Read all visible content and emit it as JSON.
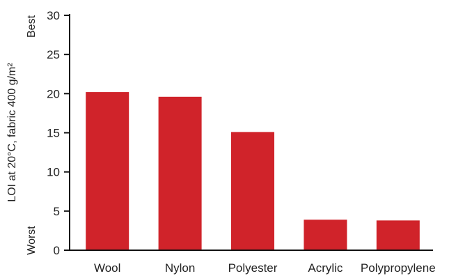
{
  "chart_data": {
    "type": "bar",
    "title": "",
    "categories": [
      "Wool",
      "Nylon",
      "Polyester",
      "Acrylic",
      "Polypropylene"
    ],
    "values": [
      20.2,
      19.6,
      15.1,
      3.9,
      3.8
    ],
    "ylabel": "LOI at 20°C, fabric 400 g/m²",
    "xlabel": "",
    "ylim": [
      0,
      30
    ],
    "yticks": [
      0,
      5,
      10,
      15,
      20,
      25,
      30
    ],
    "y_top_annotation": "Best",
    "y_bottom_annotation": "Worst",
    "bar_color": "#d0232a",
    "grid": false,
    "legend": "none"
  }
}
